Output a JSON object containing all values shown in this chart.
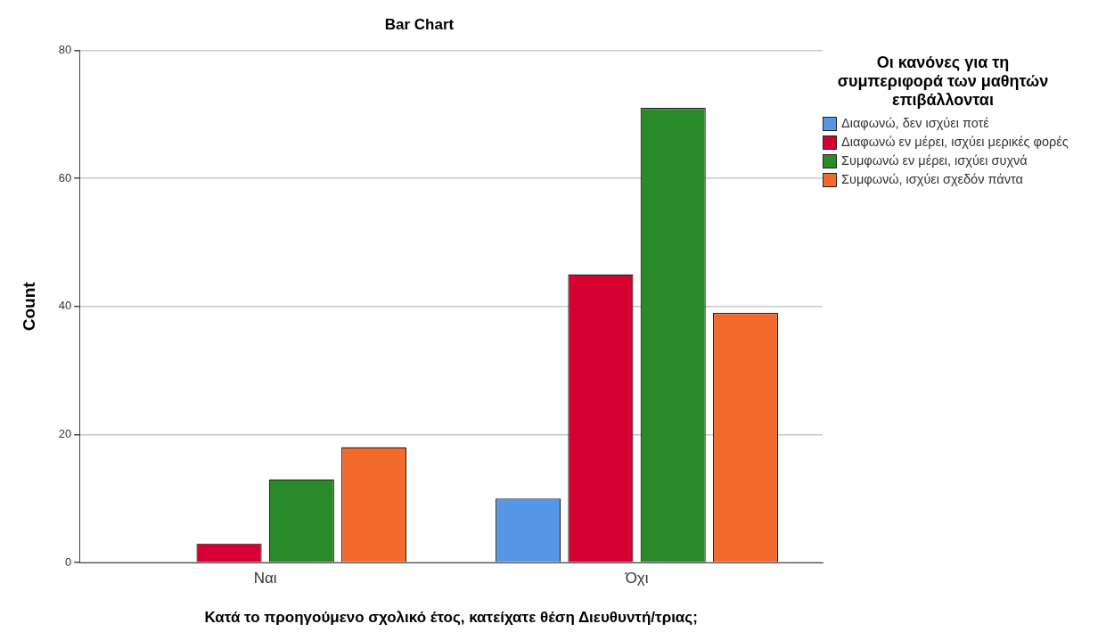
{
  "chart_data": {
    "type": "bar",
    "title": "Bar Chart",
    "xlabel": "Κατά το προηγούμενο σχολικό έτος, κατείχατε θέση Διευθυντή/τριας;",
    "ylabel": "Count",
    "legend_title": "Οι κανόνες για τη συμπεριφορά των μαθητών επιβάλλονται",
    "categories": [
      "Ναι",
      "Όχι"
    ],
    "series": [
      {
        "name": "Διαφωνώ, δεν ισχύει ποτέ",
        "color": "#5596e6",
        "values": [
          0,
          10
        ]
      },
      {
        "name": "Διαφωνώ εν μέρει, ισχύει μερικές φορές",
        "color": "#d60032",
        "values": [
          3,
          45
        ]
      },
      {
        "name": "Συμφωνώ εν μέρει, ισχύει συχνά",
        "color": "#2a8a2a",
        "values": [
          13,
          71
        ]
      },
      {
        "name": "Συμφωνώ, ισχύει σχεδόν πάντα",
        "color": "#f26a2c",
        "values": [
          18,
          39
        ]
      }
    ],
    "ylim": [
      0,
      80
    ],
    "yticks": [
      0,
      20,
      40,
      60,
      80
    ],
    "grid": "y",
    "legend": "top right"
  }
}
